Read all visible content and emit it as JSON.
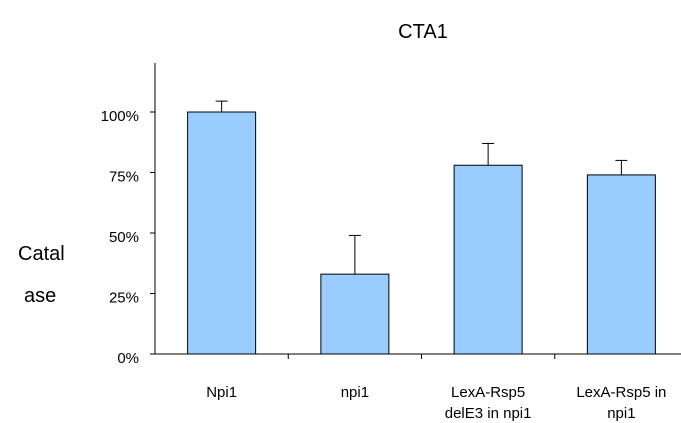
{
  "chart_data": {
    "type": "bar",
    "title": "CTA1",
    "ylabel_lines": [
      "Catal",
      "ase"
    ],
    "xlabel": "",
    "categories": [
      [
        "Npi1"
      ],
      [
        "npi1"
      ],
      [
        "LexA-Rsp5",
        "delE3 in npi1"
      ],
      [
        "LexA-Rsp5 in",
        "npi1"
      ]
    ],
    "values": [
      100,
      33,
      78,
      74
    ],
    "error_plus": [
      4.5,
      16,
      9,
      6
    ],
    "ylim": [
      0,
      120
    ],
    "yticks": [
      0,
      25,
      50,
      75,
      100
    ],
    "ytick_labels": [
      "0%",
      "25%",
      "50%",
      "75%",
      "100%"
    ],
    "bar_color": "#99ccff",
    "edge_color": "#000000",
    "grid": false,
    "legend": "none"
  }
}
